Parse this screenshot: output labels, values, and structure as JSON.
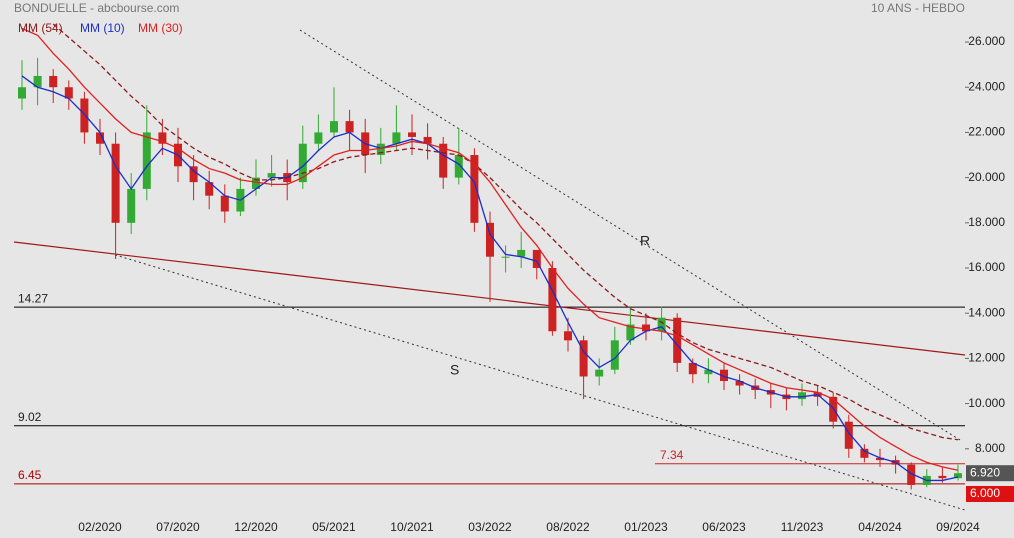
{
  "chart_data": {
    "type": "candlestick",
    "title": "BONDUELLE - abcbourse.com",
    "subtitle": "10 ANS - HEBDO",
    "categories": [
      null,
      null,
      null,
      null,
      null,
      "02/2020",
      null,
      null,
      null,
      null,
      "07/2020",
      null,
      null,
      null,
      null,
      "12/2020",
      null,
      null,
      null,
      null,
      "05/2021",
      null,
      null,
      null,
      null,
      "10/2021",
      null,
      null,
      null,
      null,
      "03/2022",
      null,
      null,
      null,
      null,
      "08/2022",
      null,
      null,
      null,
      null,
      "01/2023",
      null,
      null,
      null,
      null,
      "06/2023",
      null,
      null,
      null,
      null,
      "11/2023",
      null,
      null,
      null,
      null,
      "04/2024",
      null,
      null,
      null,
      null,
      "09/2024"
    ],
    "open": [
      23.5,
      24,
      24.5,
      24,
      23.5,
      22,
      21.5,
      18,
      19.5,
      22,
      21.5,
      20.5,
      19.8,
      19.2,
      18.5,
      19.5,
      20,
      20.2,
      19.8,
      21.5,
      22,
      22.5,
      22,
      21,
      21.5,
      22,
      21.8,
      21.5,
      20,
      21,
      18,
      16.5,
      16.5,
      16.8,
      16,
      13.2,
      12.8,
      11.2,
      11.5,
      12.8,
      13.5,
      13.2,
      13.8,
      11.8,
      11.3,
      11.5,
      11,
      10.8,
      10.6,
      10.4,
      10.2,
      10.5,
      10.3,
      9.2,
      8,
      7.6,
      7.5,
      7.3,
      6.4,
      6.8,
      6.7
    ],
    "high": [
      25.2,
      25.3,
      24.8,
      24.3,
      23.8,
      22.6,
      22,
      20.2,
      23.2,
      22.6,
      22.2,
      21,
      20.3,
      19.7,
      20,
      20.8,
      21,
      20.8,
      22.3,
      22.8,
      24,
      23,
      22.6,
      22.2,
      23.2,
      22.8,
      22.4,
      21.8,
      22.2,
      21.3,
      18.5,
      17,
      17.6,
      16.8,
      16.3,
      13.8,
      13,
      12,
      13.4,
      14.2,
      14,
      14.3,
      14,
      12,
      12,
      11.8,
      11.3,
      11.1,
      10.9,
      10.7,
      10.9,
      10.8,
      10.5,
      9.5,
      8.2,
      8,
      7.7,
      7.4,
      7.1,
      7.2,
      7.3
    ],
    "low": [
      23,
      23.2,
      23.3,
      23,
      21.5,
      21,
      16.4,
      17.5,
      19,
      21,
      19.8,
      19,
      18.6,
      18,
      18.3,
      19.2,
      19.6,
      19,
      19.5,
      21.2,
      21.8,
      21.2,
      20.2,
      20.6,
      21.2,
      21,
      20.8,
      19.5,
      19.7,
      17.6,
      14.5,
      15.8,
      16,
      15.5,
      13,
      12.3,
      10.2,
      10.8,
      11.3,
      12.6,
      12.8,
      12.8,
      11.4,
      10.9,
      10.9,
      10.6,
      10.4,
      10.2,
      9.8,
      9.7,
      9.9,
      9.9,
      8.9,
      7.6,
      7.4,
      7.2,
      6.9,
      6.2,
      6.3,
      6.5,
      6.6
    ],
    "close": [
      24,
      24.5,
      24,
      23.5,
      22,
      21.5,
      18,
      19.5,
      22,
      21.5,
      20.5,
      19.8,
      19.2,
      18.5,
      19.5,
      20,
      20.2,
      19.8,
      21.5,
      22,
      22.5,
      22,
      21,
      21.5,
      22,
      21.8,
      21.5,
      20,
      21,
      18,
      16.5,
      16.5,
      16.8,
      16,
      13.2,
      12.8,
      11.2,
      11.5,
      12.8,
      13.5,
      13.2,
      13.8,
      11.8,
      11.3,
      11.5,
      11,
      10.8,
      10.6,
      10.4,
      10.2,
      10.5,
      10.3,
      9.2,
      8,
      7.6,
      7.5,
      7.3,
      6.4,
      6.8,
      6.7,
      6.92
    ],
    "up_color": "#33aa33",
    "down_color": "#cc2222",
    "series": [
      {
        "name": "MM (54)",
        "color": "#8b1a1a",
        "dashed": true,
        "values": [
          null,
          null,
          26.8,
          26.2,
          25.6,
          25,
          24.3,
          23.6,
          23,
          22.3,
          21.8,
          21.3,
          20.9,
          20.6,
          20.2,
          19.9,
          19.9,
          20,
          20.2,
          20.4,
          20.7,
          20.9,
          21,
          21.1,
          21.2,
          21.3,
          21.2,
          21.1,
          21,
          20.6,
          20,
          19.3,
          18.6,
          18,
          17.3,
          16.6,
          15.9,
          15.3,
          14.7,
          14.2,
          13.9,
          13.6,
          13.1,
          12.7,
          12.4,
          12.2,
          12,
          11.8,
          11.6,
          11.3,
          11,
          10.8,
          10.5,
          10.2,
          9.8,
          9.5,
          9.2,
          8.9,
          8.7,
          8.5,
          8.4
        ]
      },
      {
        "name": "MM (10)",
        "color": "#1a2ecc",
        "dashed": false,
        "values": [
          24.5,
          24,
          23.8,
          23.5,
          22.8,
          22,
          20.5,
          19.5,
          20.5,
          21.3,
          21,
          20.3,
          19.8,
          19.2,
          19,
          19.5,
          20,
          20,
          20.5,
          21.2,
          21.8,
          22,
          21.5,
          21.3,
          21.5,
          21.7,
          21.5,
          21,
          20.6,
          19.8,
          17.5,
          16.6,
          16.5,
          16.3,
          15,
          13.6,
          12.3,
          11.6,
          12,
          12.8,
          13.2,
          13.4,
          12.6,
          11.8,
          11.5,
          11.2,
          11,
          10.7,
          10.5,
          10.3,
          10.3,
          10.4,
          9.8,
          8.7,
          7.9,
          7.6,
          7.4,
          6.9,
          6.6,
          6.6,
          6.75
        ]
      },
      {
        "name": "MM (30)",
        "color": "#e02020",
        "dashed": false,
        "values": [
          26.6,
          26.3,
          25.5,
          24.8,
          24,
          23.3,
          22.6,
          22,
          21.8,
          21.6,
          21.3,
          20.8,
          20.4,
          20.2,
          19.9,
          19.8,
          19.7,
          19.7,
          20,
          20.5,
          21,
          21.2,
          21.2,
          21.3,
          21.4,
          21.6,
          21.5,
          21.3,
          21.1,
          20.6,
          19.8,
          18.8,
          17.8,
          17,
          16,
          15.1,
          14.4,
          13.8,
          13.6,
          13.4,
          13.3,
          13.2,
          13,
          12.6,
          12.2,
          11.8,
          11.5,
          11.2,
          10.9,
          10.7,
          10.6,
          10.5,
          10.2,
          9.6,
          9,
          8.5,
          8.1,
          7.7,
          7.4,
          7.2,
          7.05
        ]
      }
    ],
    "levels": [
      {
        "value": 14.27,
        "color": "#000000"
      },
      {
        "value": 9.02,
        "color": "#000000"
      },
      {
        "value": 7.34,
        "color": "#cc2222"
      },
      {
        "value": 6.45,
        "color": "#aa0000"
      }
    ],
    "trendlines": [
      {
        "label": "R",
        "color": "#333333",
        "dotted": true,
        "values": [
          26.53,
          8.39
        ]
      },
      {
        "label": "S",
        "color": "#333333",
        "dotted": true,
        "values": [
          16.58,
          5.29
        ]
      },
      {
        "color": "#a01818",
        "dotted": false,
        "values": [
          17.15,
          12.15
        ]
      }
    ],
    "price_tags": [
      {
        "value": 6.92,
        "label": "6.920",
        "color": "#555555"
      },
      {
        "value": 6,
        "label": "6.000",
        "color": "#dd1111"
      }
    ],
    "ylim": [
      5.07,
      27.86
    ],
    "yticks": [
      {
        "value": 8,
        "label": "8.000"
      },
      {
        "value": 10,
        "label": "10.000"
      },
      {
        "value": 12,
        "label": "12.000"
      },
      {
        "value": 14,
        "label": "14.000"
      },
      {
        "value": 16,
        "label": "16.000"
      },
      {
        "value": 18,
        "label": "18.000"
      },
      {
        "value": 20,
        "label": "20.000"
      },
      {
        "value": 22,
        "label": "22.000"
      },
      {
        "value": 24,
        "label": "24.000"
      },
      {
        "value": 26,
        "label": "26.000"
      }
    ]
  }
}
